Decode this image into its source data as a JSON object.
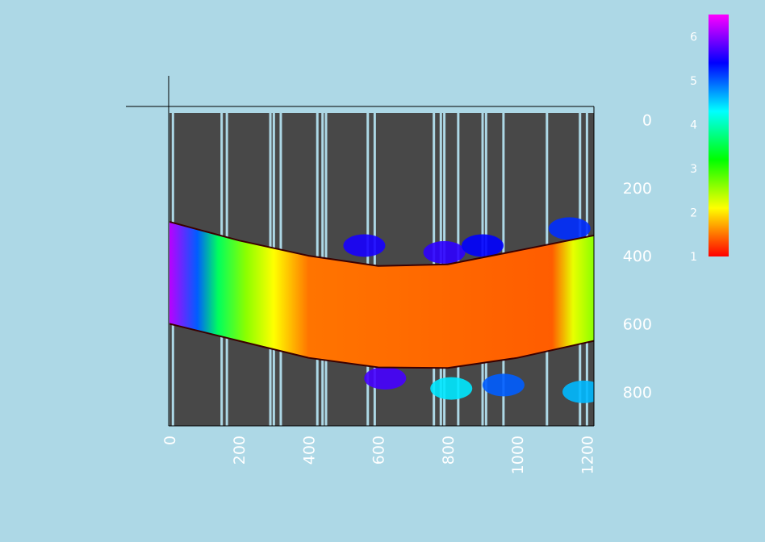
{
  "chart_data": {
    "type": "heatmap",
    "title": "",
    "xlabel": "",
    "ylabel": "",
    "x_ticks": [
      "0",
      "200",
      "400",
      "600",
      "800",
      "1000",
      "1200"
    ],
    "y_ticks": [
      "0",
      "200",
      "400",
      "600",
      "800"
    ],
    "xlim": [
      0,
      1220
    ],
    "ylim": [
      900,
      -20
    ],
    "colorbar": {
      "ticks": [
        "1",
        "2",
        "3",
        "4",
        "5",
        "6"
      ],
      "range": [
        1,
        6.5
      ],
      "colors": [
        "#ff0000",
        "#ffff00",
        "#00ff00",
        "#00ffff",
        "#0000ff",
        "#ff00ff"
      ]
    },
    "band": {
      "upper_edge": [
        [
          0,
          300
        ],
        [
          200,
          355
        ],
        [
          400,
          400
        ],
        [
          600,
          430
        ],
        [
          800,
          425
        ],
        [
          1000,
          385
        ],
        [
          1220,
          340
        ]
      ],
      "lower_edge": [
        [
          0,
          600
        ],
        [
          200,
          650
        ],
        [
          400,
          700
        ],
        [
          600,
          728
        ],
        [
          800,
          730
        ],
        [
          1000,
          700
        ],
        [
          1220,
          650
        ]
      ],
      "value_profile": [
        [
          0,
          6.2
        ],
        [
          80,
          5.0
        ],
        [
          140,
          3.6
        ],
        [
          220,
          2.6
        ],
        [
          300,
          2.1
        ],
        [
          400,
          1.5
        ],
        [
          1100,
          1.4
        ],
        [
          1160,
          2.2
        ],
        [
          1220,
          2.6
        ]
      ]
    },
    "background_color": "#484848",
    "vertical_lines_x": [
      10,
      150,
      165,
      290,
      300,
      320,
      425,
      440,
      450,
      570,
      590,
      760,
      780,
      790,
      830,
      900,
      910,
      960,
      1085,
      1180,
      1200
    ],
    "blobs": [
      {
        "x": 560,
        "y": 370,
        "value": 5.5
      },
      {
        "x": 790,
        "y": 390,
        "value": 5.6
      },
      {
        "x": 900,
        "y": 370,
        "value": 5.4
      },
      {
        "x": 1150,
        "y": 320,
        "value": 5.2
      },
      {
        "x": 620,
        "y": 760,
        "value": 5.7
      },
      {
        "x": 810,
        "y": 790,
        "value": 4.4
      },
      {
        "x": 960,
        "y": 780,
        "value": 5.0
      },
      {
        "x": 1190,
        "y": 800,
        "value": 4.6
      }
    ]
  }
}
